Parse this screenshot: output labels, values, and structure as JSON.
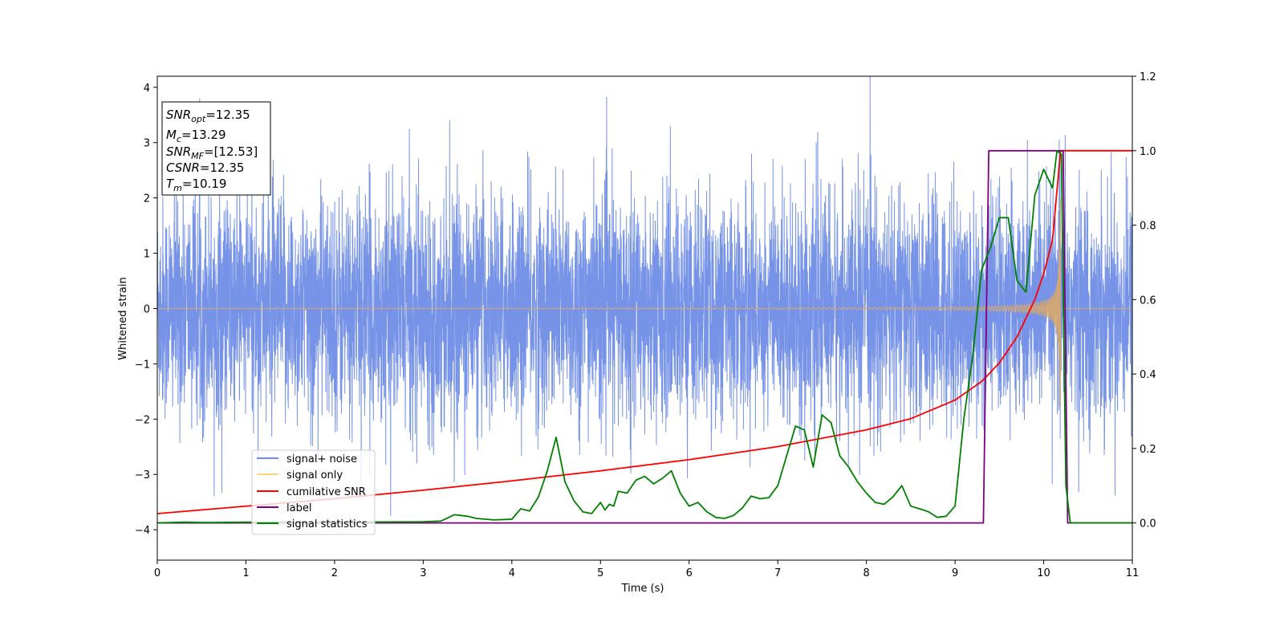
{
  "chart_data": {
    "type": "line",
    "xlabel": "Time (s)",
    "ylabel": "Whitened strain",
    "xlim": [
      0,
      11
    ],
    "ylim_left": [
      -4.55,
      4.2
    ],
    "ylim_right": [
      -0.1,
      1.2
    ],
    "x_ticks": [
      0,
      1,
      2,
      3,
      4,
      5,
      6,
      7,
      8,
      9,
      10,
      11
    ],
    "y_ticks_left": [
      -4,
      -3,
      -2,
      -1,
      0,
      1,
      2,
      3,
      4
    ],
    "y_ticks_right": [
      0.0,
      0.2,
      0.4,
      0.6,
      0.8,
      1.0,
      1.2
    ],
    "grid": false,
    "legend_placement": "lower-left",
    "info_box": {
      "snr_opt": {
        "sym": "SNR",
        "sub": "opt",
        "value": "=12.35"
      },
      "mc": {
        "sym": "M",
        "sub": "c",
        "value": "=13.29"
      },
      "snr_mf": {
        "sym": "SNR",
        "sub": "MF",
        "value": "=[12.53]"
      },
      "csnr": {
        "sym": "CSNR",
        "sub": "",
        "value": "=12.35"
      },
      "tm": {
        "sym": "T",
        "sub": "m",
        "value": "=10.19"
      }
    },
    "series": [
      {
        "name": "signal+ noise",
        "axis": "left",
        "color": "#6f8de6",
        "kind": "noise",
        "amplitude_std": 1.0,
        "t_range": [
          0,
          11
        ]
      },
      {
        "name": "signal only",
        "axis": "left",
        "color": "#d9a86a",
        "kind": "chirp",
        "t_merger": 10.19,
        "amplitude_peak": 3.0
      },
      {
        "name": "cumilative SNR",
        "axis": "right",
        "color": "#ff0000",
        "x": [
          0,
          1,
          2,
          3,
          4,
          5,
          6,
          7,
          8,
          8.5,
          9,
          9.3,
          9.5,
          9.7,
          9.9,
          10.0,
          10.1,
          10.19,
          10.2,
          11
        ],
        "y": [
          0.025,
          0.045,
          0.065,
          0.088,
          0.113,
          0.14,
          0.17,
          0.205,
          0.25,
          0.28,
          0.33,
          0.38,
          0.43,
          0.5,
          0.6,
          0.67,
          0.76,
          1.0,
          1.0,
          1.0
        ]
      },
      {
        "name": "label",
        "axis": "right",
        "color": "#800080",
        "x": [
          0,
          9.32,
          9.38,
          10.22,
          10.27,
          11
        ],
        "y": [
          0.0,
          0.0,
          1.0,
          1.0,
          0.0,
          0.0
        ]
      },
      {
        "name": "signal statistics",
        "axis": "right",
        "color": "#008000",
        "x": [
          0,
          0.3,
          0.6,
          1,
          2,
          3,
          3.2,
          3.35,
          3.5,
          3.6,
          3.8,
          4.0,
          4.1,
          4.2,
          4.3,
          4.4,
          4.5,
          4.6,
          4.7,
          4.8,
          4.9,
          5.0,
          5.05,
          5.1,
          5.15,
          5.2,
          5.3,
          5.4,
          5.5,
          5.6,
          5.7,
          5.8,
          5.9,
          6.0,
          6.1,
          6.2,
          6.3,
          6.4,
          6.5,
          6.6,
          6.7,
          6.8,
          6.9,
          7.0,
          7.1,
          7.2,
          7.3,
          7.4,
          7.5,
          7.6,
          7.7,
          7.8,
          7.9,
          8.0,
          8.1,
          8.2,
          8.3,
          8.4,
          8.5,
          8.6,
          8.7,
          8.8,
          8.9,
          9.0,
          9.1,
          9.2,
          9.3,
          9.4,
          9.5,
          9.6,
          9.7,
          9.8,
          9.9,
          10.0,
          10.1,
          10.15,
          10.2,
          10.25,
          10.3,
          10.5,
          11
        ],
        "y": [
          0.0,
          0.002,
          0.001,
          0.002,
          0.002,
          0.003,
          0.005,
          0.022,
          0.018,
          0.012,
          0.008,
          0.01,
          0.038,
          0.032,
          0.07,
          0.14,
          0.23,
          0.11,
          0.06,
          0.03,
          0.025,
          0.055,
          0.035,
          0.05,
          0.045,
          0.085,
          0.08,
          0.115,
          0.125,
          0.105,
          0.12,
          0.14,
          0.08,
          0.045,
          0.055,
          0.03,
          0.015,
          0.012,
          0.02,
          0.04,
          0.072,
          0.065,
          0.068,
          0.1,
          0.18,
          0.26,
          0.25,
          0.15,
          0.29,
          0.27,
          0.18,
          0.15,
          0.11,
          0.08,
          0.055,
          0.05,
          0.07,
          0.1,
          0.045,
          0.038,
          0.03,
          0.015,
          0.018,
          0.045,
          0.28,
          0.45,
          0.68,
          0.74,
          0.82,
          0.82,
          0.65,
          0.62,
          0.88,
          0.95,
          0.9,
          1.0,
          0.99,
          0.1,
          0.0,
          0.0,
          0.0
        ]
      }
    ]
  }
}
